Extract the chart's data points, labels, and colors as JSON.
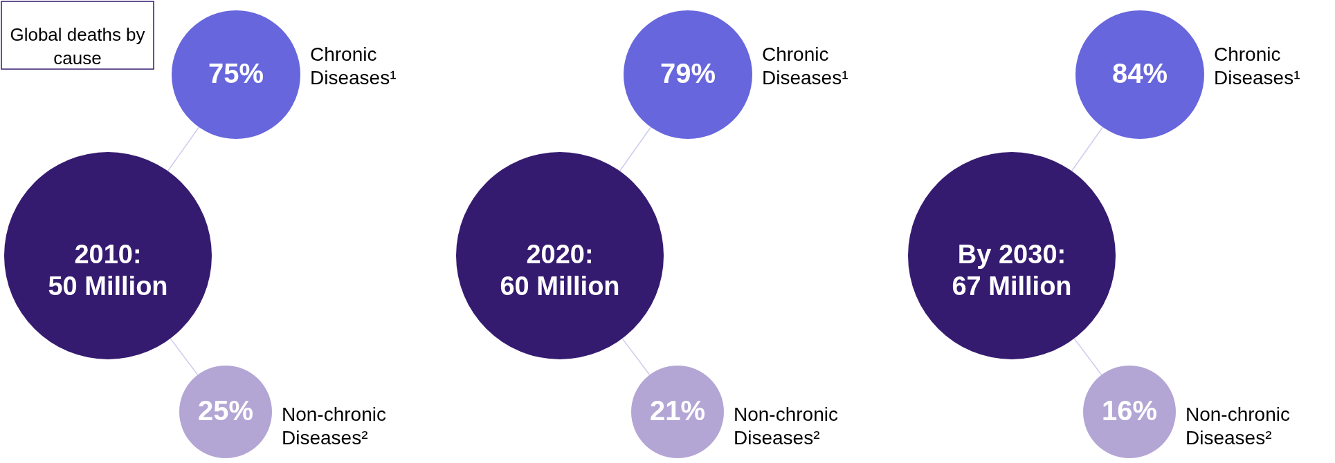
{
  "chart_data": {
    "type": "other",
    "title": "Global deaths by cause",
    "categories": [
      "2010: 50 Million",
      "2020: 60 Million",
      "By 2030: 67 Million"
    ],
    "color": "#351b70",
    "series": [
      {
        "name": "Chronic Diseases¹",
        "color": "#6766dd",
        "values": [
          75,
          79,
          84
        ],
        "value_labels": [
          "75%",
          "79%",
          "84%"
        ]
      },
      {
        "name": "Non-chronic Diseases²",
        "color": "#b3a6d5",
        "values": [
          25,
          21,
          16
        ],
        "value_labels": [
          "25%",
          "21%",
          "16%"
        ]
      }
    ]
  }
}
